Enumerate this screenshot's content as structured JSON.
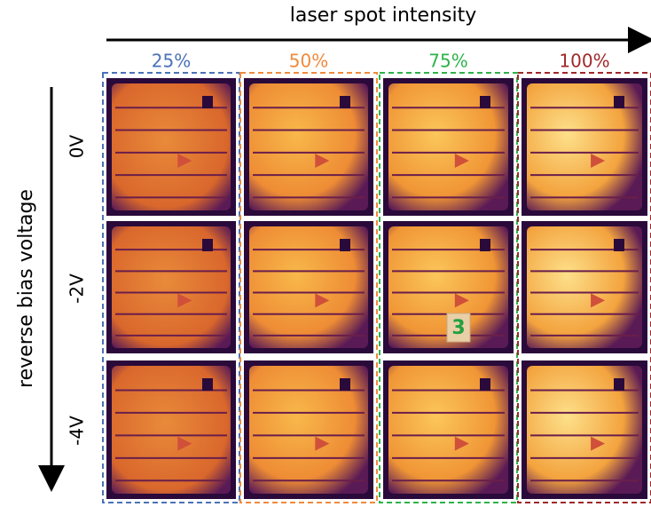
{
  "header": {
    "x_axis_label": "laser spot intensity",
    "y_axis_label": "reverse bias voltage"
  },
  "columns": [
    "25%",
    "50%",
    "75%",
    "100%"
  ],
  "rows": [
    "0V",
    "-2V",
    "-4V"
  ],
  "annotation": "3"
}
